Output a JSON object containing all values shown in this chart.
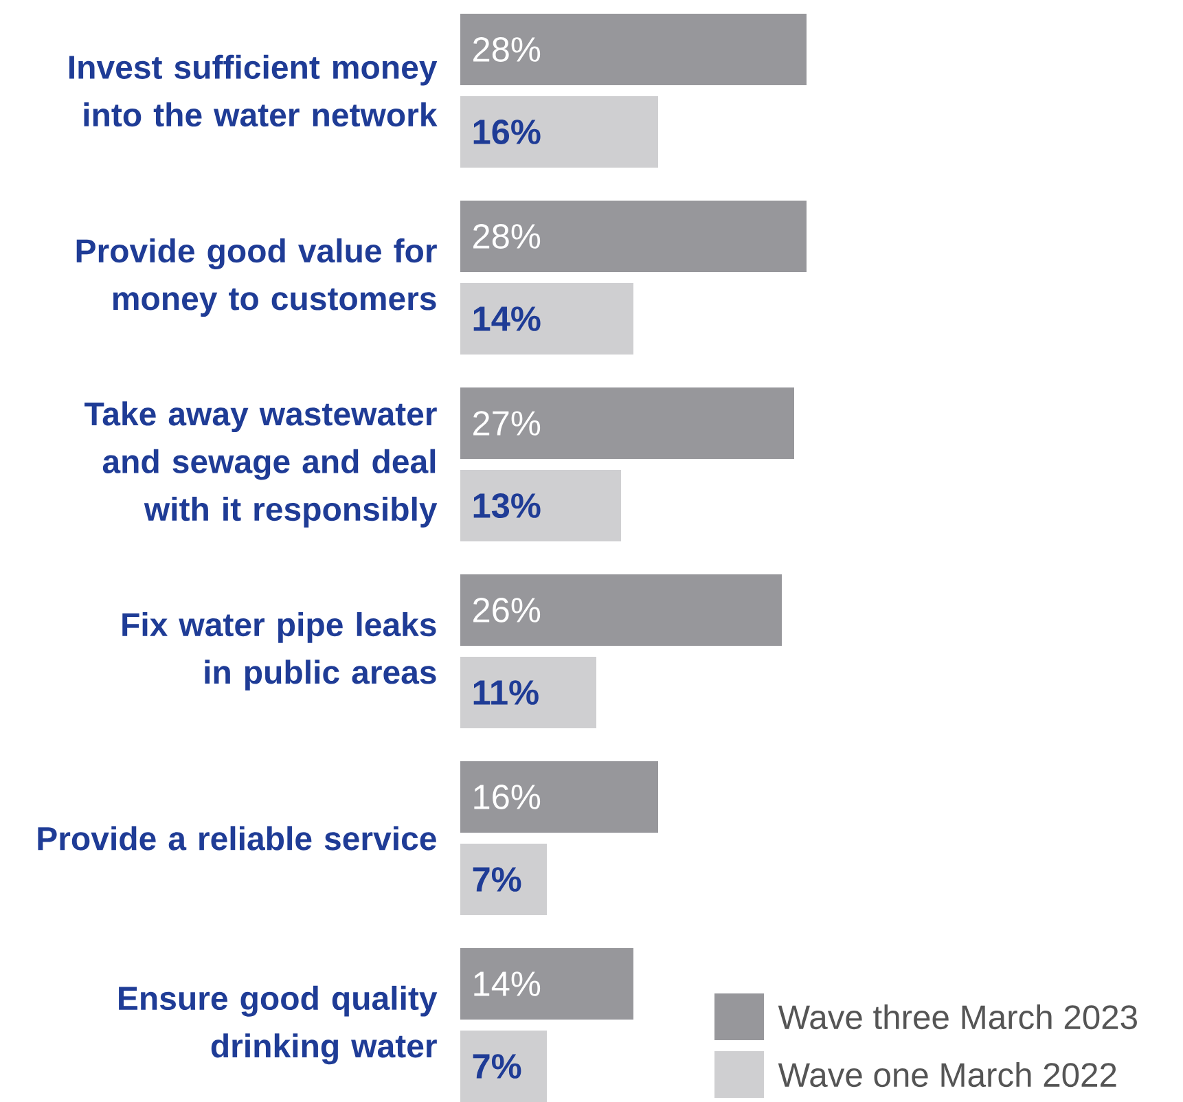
{
  "chart_data": {
    "type": "bar",
    "orientation": "horizontal",
    "categories": [
      "Invest sufficient money into the water network",
      "Provide good value for money to customers",
      "Take away wastewater and sewage and deal with it responsibly",
      "Fix water pipe leaks in public areas",
      "Provide a reliable service",
      "Ensure good quality drinking water"
    ],
    "series": [
      {
        "name": "Wave three March 2023",
        "color": "#97979b",
        "values": [
          28,
          28,
          27,
          26,
          16,
          14
        ],
        "value_labels": [
          "28%",
          "28%",
          "27%",
          "26%",
          "16%",
          "14%"
        ]
      },
      {
        "name": "Wave one March 2022",
        "color": "#cfcfd1",
        "values": [
          16,
          14,
          13,
          11,
          7,
          7
        ],
        "value_labels": [
          "16%",
          "14%",
          "13%",
          "11%",
          "7%",
          "7%"
        ]
      }
    ],
    "legend": "bottom right"
  }
}
